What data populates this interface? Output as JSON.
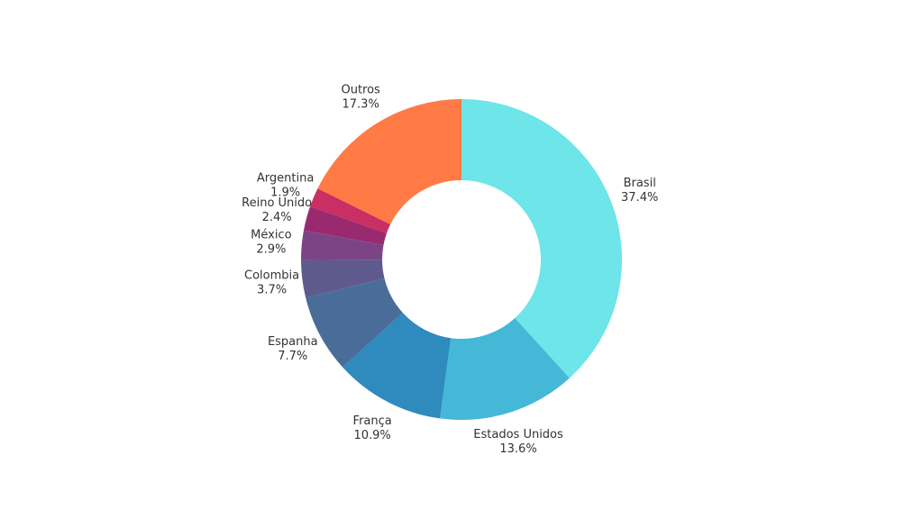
{
  "chart_data": {
    "type": "donut",
    "categories": [
      "Brasil",
      "Estados Unidos",
      "França",
      "Espanha",
      "Colombia",
      "México",
      "Reino Unido",
      "Argentina",
      "Outros"
    ],
    "values": [
      37.4,
      13.6,
      10.9,
      7.7,
      3.7,
      2.9,
      2.4,
      1.9,
      17.3
    ],
    "value_labels": [
      "37.4%",
      "13.6%",
      "10.9%",
      "7.7%",
      "3.7%",
      "2.9%",
      "2.4%",
      "1.9%",
      "17.3%"
    ],
    "colors": [
      "#6de5e9",
      "#45b8d8",
      "#2f8abd",
      "#4a6c98",
      "#5e5a8e",
      "#7b4585",
      "#9a2a70",
      "#c92f62",
      "#ff7a45"
    ]
  }
}
